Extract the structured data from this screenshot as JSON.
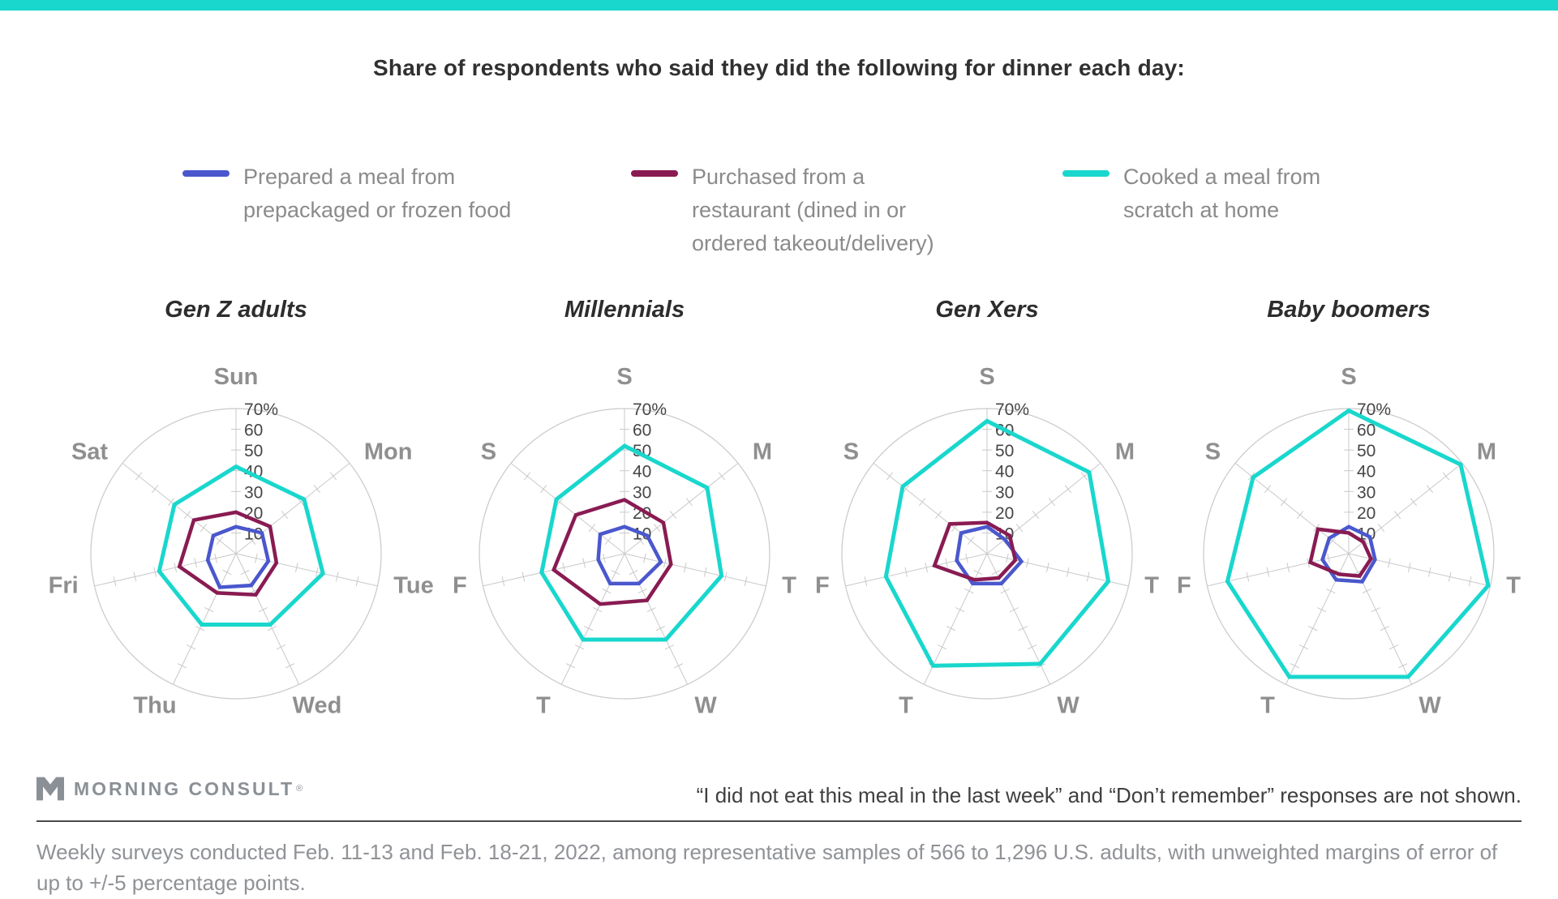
{
  "title": "Share of respondents who said they did the following for dinner each day:",
  "accent_color": "#19d7cd",
  "legend": [
    {
      "label": "Prepared a meal from prepackaged or frozen food",
      "lines": [
        "Prepared a meal from",
        "prepackaged or frozen food"
      ],
      "color": "#4a57cd"
    },
    {
      "label": "Purchased from a restaurant (dined in or ordered takeout/delivery)",
      "lines": [
        "Purchased from a",
        "restaurant (dined in or",
        "ordered takeout/delivery)"
      ],
      "color": "#891b52"
    },
    {
      "label": "Cooked a meal from scratch at home",
      "lines": [
        "Cooked a meal from",
        "scratch at home"
      ],
      "color": "#19d7cd"
    }
  ],
  "chart_data": [
    {
      "type": "line",
      "variant": "radar",
      "title": "Gen Z adults",
      "categories": [
        "Sun",
        "Mon",
        "Tue",
        "Wed",
        "Thu",
        "Fri",
        "Sat"
      ],
      "axis_labels": [
        "Sun",
        "Mon",
        "Tue",
        "Wed",
        "Thu",
        "Fri",
        "Sat"
      ],
      "r_max": 70,
      "r_step": 10,
      "r_tick_labels": [
        "10",
        "20",
        "30",
        "40",
        "50",
        "60",
        "70%"
      ],
      "series": [
        {
          "name": "Prepared a meal from prepackaged or frozen food",
          "color": "#4a57cd",
          "values": [
            13,
            16,
            16,
            17,
            18,
            14,
            14
          ]
        },
        {
          "name": "Purchased from a restaurant (dined in or ordered takeout/delivery)",
          "color": "#891b52",
          "values": [
            20,
            21,
            20,
            22,
            21,
            28,
            26
          ]
        },
        {
          "name": "Cooked a meal from scratch at home",
          "color": "#19d7cd",
          "values": [
            42,
            42,
            43,
            38,
            38,
            38,
            38
          ]
        }
      ]
    },
    {
      "type": "line",
      "variant": "radar",
      "title": "Millennials",
      "categories": [
        "Sun",
        "Mon",
        "Tue",
        "Wed",
        "Thu",
        "Fri",
        "Sat"
      ],
      "axis_labels": [
        "S",
        "M",
        "T",
        "W",
        "T",
        "F",
        "S"
      ],
      "r_max": 70,
      "r_step": 10,
      "r_tick_labels": [
        "10",
        "20",
        "30",
        "40",
        "50",
        "60",
        "70%"
      ],
      "series": [
        {
          "name": "Prepared a meal from prepackaged or frozen food",
          "color": "#4a57cd",
          "values": [
            13,
            14,
            18,
            16,
            16,
            13,
            15
          ]
        },
        {
          "name": "Purchased from a restaurant (dined in or ordered takeout/delivery)",
          "color": "#891b52",
          "values": [
            26,
            24,
            23,
            25,
            27,
            35,
            30
          ]
        },
        {
          "name": "Cooked a meal from scratch at home",
          "color": "#19d7cd",
          "values": [
            52,
            51,
            48,
            46,
            46,
            41,
            42
          ]
        }
      ]
    },
    {
      "type": "line",
      "variant": "radar",
      "title": "Gen Xers",
      "categories": [
        "Sun",
        "Mon",
        "Tue",
        "Wed",
        "Thu",
        "Fri",
        "Sat"
      ],
      "axis_labels": [
        "S",
        "M",
        "T",
        "W",
        "T",
        "F",
        "S"
      ],
      "r_max": 70,
      "r_step": 10,
      "r_tick_labels": [
        "10",
        "20",
        "30",
        "40",
        "50",
        "60",
        "70%"
      ],
      "series": [
        {
          "name": "Prepared a meal from prepackaged or frozen food",
          "color": "#4a57cd",
          "values": [
            13,
            11,
            17,
            16,
            16,
            15,
            16
          ]
        },
        {
          "name": "Purchased from a restaurant (dined in or ordered takeout/delivery)",
          "color": "#891b52",
          "values": [
            15,
            14,
            14,
            13,
            14,
            26,
            23
          ]
        },
        {
          "name": "Cooked a meal from scratch at home",
          "color": "#19d7cd",
          "values": [
            64,
            63,
            60,
            59,
            60,
            50,
            52
          ]
        }
      ]
    },
    {
      "type": "line",
      "variant": "radar",
      "title": "Baby boomers",
      "categories": [
        "Sun",
        "Mon",
        "Tue",
        "Wed",
        "Thu",
        "Fri",
        "Sat"
      ],
      "axis_labels": [
        "S",
        "M",
        "T",
        "W",
        "T",
        "F",
        "S"
      ],
      "r_max": 70,
      "r_step": 10,
      "r_tick_labels": [
        "10",
        "20",
        "30",
        "40",
        "50",
        "60",
        "70%"
      ],
      "series": [
        {
          "name": "Prepared a meal from prepackaged or frozen food",
          "color": "#4a57cd",
          "values": [
            13,
            13,
            13,
            15,
            14,
            13,
            12
          ]
        },
        {
          "name": "Purchased from a restaurant (dined in or ordered takeout/delivery)",
          "color": "#891b52",
          "values": [
            10,
            9,
            11,
            12,
            11,
            19,
            19
          ]
        },
        {
          "name": "Cooked a meal from scratch at home",
          "color": "#19d7cd",
          "values": [
            69,
            69,
            69,
            66,
            66,
            60,
            59
          ]
        }
      ]
    }
  ],
  "footer": {
    "brand": "MORNING CONSULT",
    "brand_mark": "®",
    "note": "“I did not eat this meal in the last week” and “Don’t remember” responses are not shown.",
    "survey_note_lines": [
      "Weekly surveys conducted Feb. 11-13 and Feb. 18-21, 2022, among representative samples of 566 to 1,296 U.S. adults, with unweighted margins of error of",
      "up to +/-5 percentage points."
    ]
  }
}
